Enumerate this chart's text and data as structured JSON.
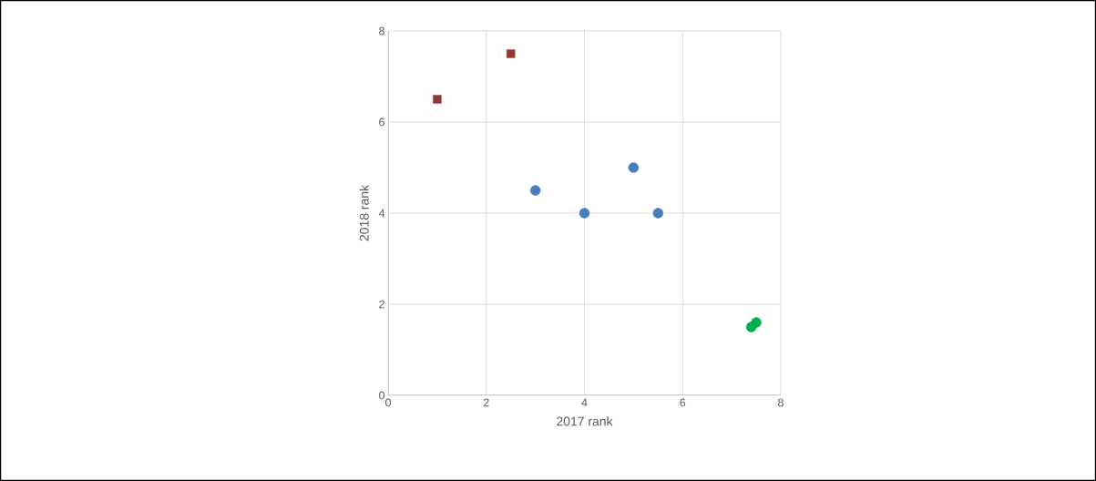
{
  "chart_data": {
    "type": "scatter",
    "xlabel": "2017 rank",
    "ylabel": "2018 rank",
    "xlim": [
      0,
      8
    ],
    "ylim": [
      0,
      8
    ],
    "xticks": [
      0,
      2,
      4,
      6,
      8
    ],
    "yticks": [
      0,
      2,
      4,
      6,
      8
    ],
    "grid": true,
    "series": [
      {
        "color": "#953735",
        "marker": "square",
        "x": [
          1,
          2.5
        ],
        "values": [
          6.5,
          7.5
        ]
      },
      {
        "color": "#4a7ebb",
        "marker": "circle",
        "x": [
          3,
          4,
          5,
          5.5
        ],
        "values": [
          4.5,
          4,
          5,
          4
        ]
      },
      {
        "color": "#00b050",
        "marker": "circle",
        "x": [
          7.4,
          7.5
        ],
        "values": [
          1.5,
          1.6
        ]
      }
    ]
  }
}
